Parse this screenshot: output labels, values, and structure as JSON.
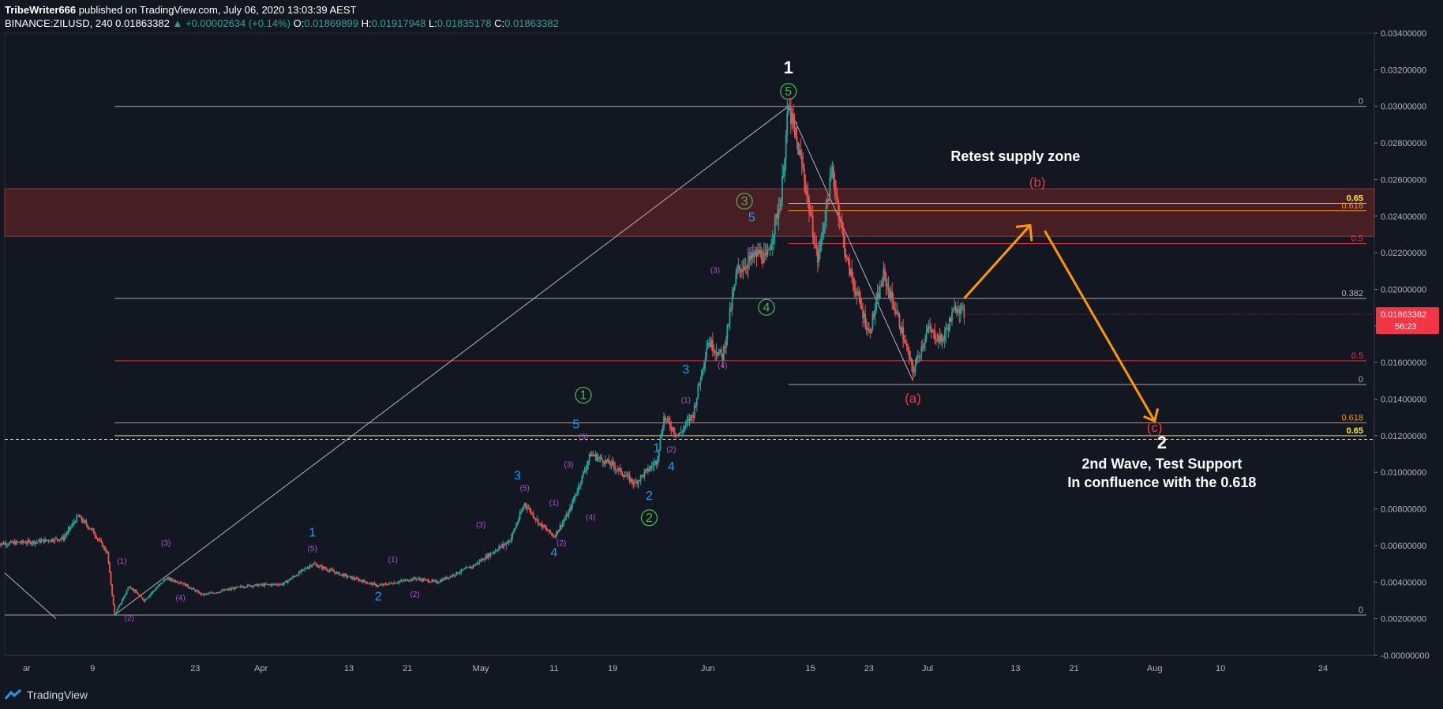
{
  "header": {
    "publisher": "TribeWriter666",
    "published_text": "published on TradingView.com, July 06, 2020 13:03:39 AEST",
    "symbol": "BINANCE:ZILUSD, 240",
    "last": "0.01863382",
    "change": "▲ +0.00002634 (+0.14%)",
    "o_label": "O:",
    "o": "0.01869899",
    "h_label": "H:",
    "h": "0.01917948",
    "l_label": "L:",
    "l": "0.01835178",
    "c_label": "C:",
    "c": "0.01863382"
  },
  "footer": {
    "brand": "TradingView"
  },
  "colors": {
    "background": "#131722",
    "up": "#26a69a",
    "down": "#ef5350",
    "supply_zone": "#5a2226",
    "fib_white": "#b2b5be",
    "fib_red": "#f23645",
    "fib_orange": "#ff9800",
    "fib_yellow": "#ffeb3b",
    "arrow": "#ff9800",
    "wave_blue": "#2196f3",
    "wave_green": "#4caf50",
    "wave_purple": "#9c27b0",
    "wave_red": "#f23645",
    "current_price": "#f23645"
  },
  "chart_data": {
    "type": "candlestick",
    "title": "",
    "ylim": [
      -1e-07,
      0.034
    ],
    "y_ticks": [
      "0.03400000",
      "0.03200000",
      "0.03000000",
      "0.02800000",
      "0.02600000",
      "0.02400000",
      "0.02200000",
      "0.02000000",
      "0.01800000",
      "0.01600000",
      "0.01400000",
      "0.01200000",
      "0.01000000",
      "0.00800000",
      "0.00600000",
      "0.00400000",
      "0.00200000",
      "-0.00000000"
    ],
    "x_ticks": [
      "ar",
      "9",
      "23",
      "Apr",
      "13",
      "21",
      "May",
      "11",
      "19",
      "Jun",
      "15",
      "23",
      "Jul",
      "13",
      "21",
      "Aug",
      "10",
      "24"
    ],
    "current_price": {
      "value": "0.01863382",
      "countdown": "56:23"
    },
    "price_path": [
      [
        "2020-02-25",
        0.0061
      ],
      [
        "2020-03-01",
        0.0062
      ],
      [
        "2020-03-05",
        0.0064
      ],
      [
        "2020-03-07",
        0.0076
      ],
      [
        "2020-03-09",
        0.0068
      ],
      [
        "2020-03-11",
        0.0056
      ],
      [
        "2020-03-12",
        0.0022
      ],
      [
        "2020-03-14",
        0.0038
      ],
      [
        "2020-03-16",
        0.003
      ],
      [
        "2020-03-19",
        0.0042
      ],
      [
        "2020-03-21",
        0.004
      ],
      [
        "2020-03-24",
        0.0033
      ],
      [
        "2020-03-30",
        0.0038
      ],
      [
        "2020-04-04",
        0.0039
      ],
      [
        "2020-04-08",
        0.005
      ],
      [
        "2020-04-12",
        0.0044
      ],
      [
        "2020-04-17",
        0.0038
      ],
      [
        "2020-04-22",
        0.0042
      ],
      [
        "2020-04-25",
        0.004
      ],
      [
        "2020-04-30",
        0.0049
      ],
      [
        "2020-05-05",
        0.0063
      ],
      [
        "2020-05-07",
        0.0083
      ],
      [
        "2020-05-09",
        0.0072
      ],
      [
        "2020-05-11",
        0.0065
      ],
      [
        "2020-05-13",
        0.0078
      ],
      [
        "2020-05-16",
        0.011
      ],
      [
        "2020-05-19",
        0.0104
      ],
      [
        "2020-05-22",
        0.0094
      ],
      [
        "2020-05-25",
        0.0106
      ],
      [
        "2020-05-26",
        0.013
      ],
      [
        "2020-05-28",
        0.012
      ],
      [
        "2020-05-30",
        0.0132
      ],
      [
        "2020-06-01",
        0.0172
      ],
      [
        "2020-06-03",
        0.0163
      ],
      [
        "2020-06-05",
        0.021
      ],
      [
        "2020-06-08",
        0.022
      ],
      [
        "2020-06-09",
        0.0216
      ],
      [
        "2020-06-11",
        0.025
      ],
      [
        "2020-06-12",
        0.03
      ],
      [
        "2020-06-14",
        0.0265
      ],
      [
        "2020-06-16",
        0.0216
      ],
      [
        "2020-06-18",
        0.0265
      ],
      [
        "2020-06-20",
        0.0215
      ],
      [
        "2020-06-23",
        0.0176
      ],
      [
        "2020-06-25",
        0.0208
      ],
      [
        "2020-06-27",
        0.0184
      ],
      [
        "2020-06-29",
        0.0155
      ],
      [
        "2020-07-01",
        0.0178
      ],
      [
        "2020-07-03",
        0.0172
      ],
      [
        "2020-07-05",
        0.0192
      ],
      [
        "2020-07-06",
        0.0186
      ]
    ],
    "supply_zone": {
      "from": 0.0229,
      "to": 0.0255
    },
    "fib_upper": [
      {
        "level": "0",
        "price": 0.03
      },
      {
        "level": "0.65",
        "price": 0.0247
      },
      {
        "level": "0.618",
        "price": 0.0243
      },
      {
        "level": "0.5",
        "price": 0.0225
      }
    ],
    "fib_lower": [
      {
        "level": "0.382",
        "price": 0.0195
      },
      {
        "level": "0.5",
        "price": 0.0161
      },
      {
        "level": "0",
        "price": 0.0148
      },
      {
        "level": "0.618",
        "price": 0.0127
      },
      {
        "level": "0.65",
        "price": 0.012
      },
      {
        "level": "0",
        "price": 0.0022
      }
    ],
    "projection": [
      [
        "2020-07-06",
        0.0195
      ],
      [
        "2020-07-15",
        0.0235
      ],
      [
        "2020-07-17",
        0.0232
      ],
      [
        "2020-08-01",
        0.0128
      ]
    ],
    "wave_labels": [
      {
        "text": "1",
        "date": "2020-06-12",
        "price": 0.0318,
        "style": "major"
      },
      {
        "text": "5",
        "date": "2020-06-12",
        "price": 0.0306,
        "style": "green"
      },
      {
        "text": "3",
        "date": "2020-06-06",
        "price": 0.0246,
        "style": "green"
      },
      {
        "text": "4",
        "date": "2020-06-09",
        "price": 0.0188,
        "style": "green"
      },
      {
        "text": "1",
        "date": "2020-05-15",
        "price": 0.014,
        "style": "green"
      },
      {
        "text": "2",
        "date": "2020-05-24",
        "price": 0.0073,
        "style": "green"
      },
      {
        "text": "5",
        "date": "2020-06-07",
        "price": 0.0237,
        "style": "blue"
      },
      {
        "text": "3",
        "date": "2020-05-29",
        "price": 0.0154,
        "style": "blue"
      },
      {
        "text": "5",
        "date": "2020-05-14",
        "price": 0.0124,
        "style": "blue"
      },
      {
        "text": "1",
        "date": "2020-05-25",
        "price": 0.0111,
        "style": "blue"
      },
      {
        "text": "4",
        "date": "2020-05-27",
        "price": 0.0101,
        "style": "blue"
      },
      {
        "text": "2",
        "date": "2020-05-24",
        "price": 0.0085,
        "style": "blue"
      },
      {
        "text": "3",
        "date": "2020-05-06",
        "price": 0.0096,
        "style": "blue"
      },
      {
        "text": "4",
        "date": "2020-05-11",
        "price": 0.0054,
        "style": "blue"
      },
      {
        "text": "1",
        "date": "2020-04-08",
        "price": 0.0065,
        "style": "blue"
      },
      {
        "text": "2",
        "date": "2020-04-17",
        "price": 0.003,
        "style": "blue"
      },
      {
        "text": "(5)",
        "date": "2020-06-07",
        "price": 0.022,
        "style": "purple"
      },
      {
        "text": "(3)",
        "date": "2020-06-02",
        "price": 0.0209,
        "style": "purple"
      },
      {
        "text": "(4)",
        "date": "2020-06-03",
        "price": 0.0157,
        "style": "purple"
      },
      {
        "text": "(1)",
        "date": "2020-05-29",
        "price": 0.0138,
        "style": "purple"
      },
      {
        "text": "(2)",
        "date": "2020-05-27",
        "price": 0.0111,
        "style": "purple"
      },
      {
        "text": "(5)",
        "date": "2020-05-15",
        "price": 0.0118,
        "style": "purple"
      },
      {
        "text": "(3)",
        "date": "2020-05-13",
        "price": 0.0103,
        "style": "purple"
      },
      {
        "text": "(4)",
        "date": "2020-05-16",
        "price": 0.0074,
        "style": "purple"
      },
      {
        "text": "(5)",
        "date": "2020-05-07",
        "price": 0.009,
        "style": "purple"
      },
      {
        "text": "(1)",
        "date": "2020-05-11",
        "price": 0.0082,
        "style": "purple"
      },
      {
        "text": "(3)",
        "date": "2020-05-01",
        "price": 0.007,
        "style": "purple"
      },
      {
        "text": "(4)",
        "date": "2020-05-04",
        "price": 0.0058,
        "style": "purple"
      },
      {
        "text": "(2)",
        "date": "2020-05-12",
        "price": 0.006,
        "style": "purple"
      },
      {
        "text": "(1)",
        "date": "2020-04-19",
        "price": 0.0051,
        "style": "purple"
      },
      {
        "text": "(2)",
        "date": "2020-04-22",
        "price": 0.0032,
        "style": "purple"
      },
      {
        "text": "(5)",
        "date": "2020-04-08",
        "price": 0.0057,
        "style": "purple"
      },
      {
        "text": "(1)",
        "date": "2020-03-13",
        "price": 0.005,
        "style": "purple"
      },
      {
        "text": "(3)",
        "date": "2020-03-19",
        "price": 0.006,
        "style": "purple"
      },
      {
        "text": "(2)",
        "date": "2020-03-14",
        "price": 0.0019,
        "style": "purple"
      },
      {
        "text": "(4)",
        "date": "2020-03-21",
        "price": 0.003,
        "style": "purple"
      },
      {
        "text": "(a)",
        "date": "2020-06-29",
        "price": 0.0138,
        "style": "red"
      },
      {
        "text": "(b)",
        "date": "2020-07-16",
        "price": 0.0256,
        "style": "red"
      },
      {
        "text": "(c)",
        "date": "2020-08-01",
        "price": 0.0122,
        "style": "red"
      },
      {
        "text": "2",
        "date": "2020-08-02",
        "price": 0.0113,
        "style": "major"
      }
    ],
    "annotations": [
      {
        "text": "Retest supply zone",
        "date": "2020-07-13",
        "price": 0.027
      },
      {
        "text": "2nd Wave, Test Support",
        "date": "2020-08-02",
        "price": 0.0102
      },
      {
        "text": "In confluence with the 0.618",
        "date": "2020-08-02",
        "price": 0.0092
      }
    ]
  }
}
